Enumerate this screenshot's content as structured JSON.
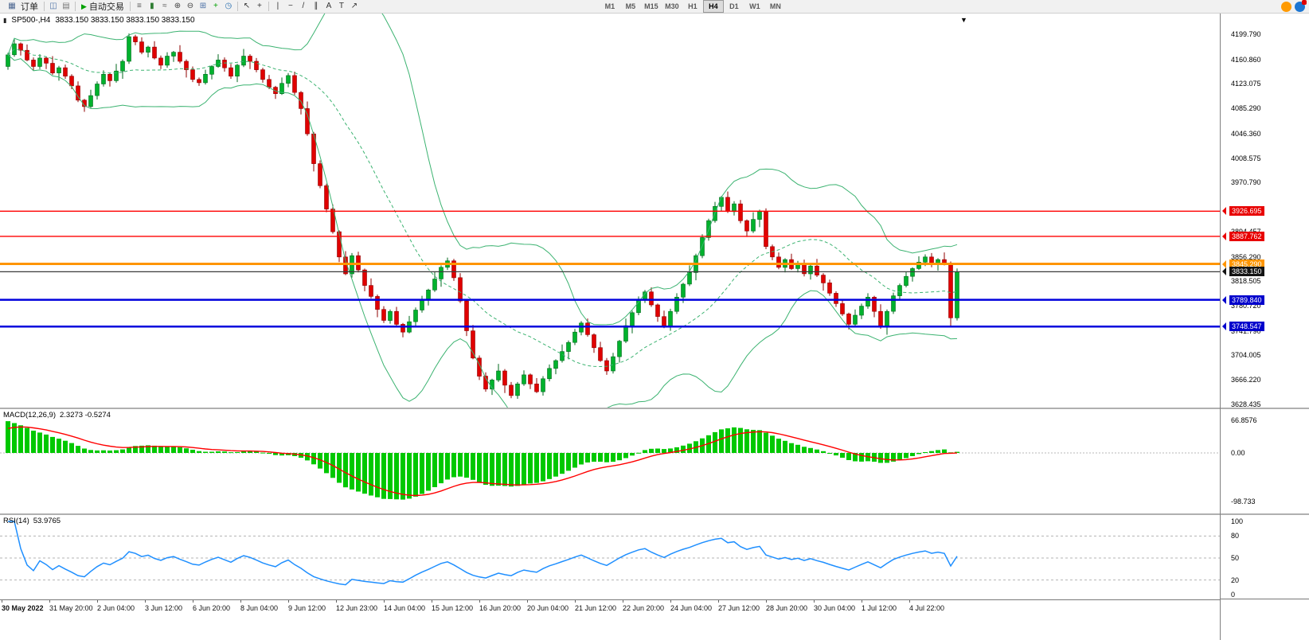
{
  "toolbar": {
    "new_order": {
      "icon_glyph": "▦",
      "label": "订单"
    },
    "chart_icons": [
      {
        "name": "chart-window-icon",
        "glyph": "◫",
        "color": "#4a6fa5"
      },
      {
        "name": "profiles-icon",
        "glyph": "▤",
        "color": "#777777"
      }
    ],
    "auto_trading": {
      "label": "自动交易",
      "play": "▶"
    },
    "tool_icons": [
      {
        "name": "bar-chart-icon",
        "glyph": "≡",
        "color": "#555555"
      },
      {
        "name": "candle-chart-icon",
        "glyph": "▮",
        "color": "#2e7d32"
      },
      {
        "name": "line-chart-icon",
        "glyph": "≈",
        "color": "#555555"
      },
      {
        "name": "zoom-in-icon",
        "glyph": "⊕",
        "color": "#444444"
      },
      {
        "name": "zoom-out-icon",
        "glyph": "⊖",
        "color": "#444444"
      },
      {
        "name": "tile-windows-icon",
        "glyph": "⊞",
        "color": "#4a6fa5"
      },
      {
        "name": "add-indicator-icon",
        "glyph": "+",
        "color": "#00a000"
      },
      {
        "name": "period-icon",
        "glyph": "◷",
        "color": "#2a6fb0"
      }
    ],
    "pointer_icons": [
      {
        "name": "cursor-icon",
        "glyph": "↖",
        "color": "#333333"
      },
      {
        "name": "crosshair-icon",
        "glyph": "+",
        "color": "#333333"
      }
    ],
    "draw_icons": [
      {
        "name": "vertical-line-icon",
        "glyph": "|",
        "color": "#333333"
      },
      {
        "name": "horizontal-line-icon",
        "glyph": "−",
        "color": "#333333"
      },
      {
        "name": "trendline-icon",
        "glyph": "/",
        "color": "#333333"
      },
      {
        "name": "channel-icon",
        "glyph": "∥",
        "color": "#333333"
      },
      {
        "name": "text-icon",
        "glyph": "A",
        "color": "#333333"
      },
      {
        "name": "label-icon",
        "glyph": "T",
        "color": "#333333"
      },
      {
        "name": "arrow-tool-icon",
        "glyph": "↗",
        "color": "#333333"
      }
    ],
    "timeframes": [
      "M1",
      "M5",
      "M15",
      "M30",
      "H1",
      "H4",
      "D1",
      "W1",
      "MN"
    ],
    "active_timeframe": "H4",
    "right_icons": [
      {
        "name": "community-icon",
        "color": "#ff9a00"
      },
      {
        "name": "search-icon",
        "color": "#1d76d2"
      }
    ]
  },
  "chart_data": {
    "type": "candlestick",
    "symbol_line": "SP500-,H4",
    "ohlc_line": "3833.150 3833.150 3833.150 3833.150",
    "price_axis": {
      "top": 4199.79,
      "bottom": 3628.435,
      "grid_labels": [
        "4199.790",
        "4160.860",
        "4123.075",
        "4085.290",
        "4046.360",
        "4008.575",
        "3970.790",
        "3894.457",
        "3856.290",
        "3818.505",
        "3780.720",
        "3741.790",
        "3704.005",
        "3666.220",
        "3628.435"
      ]
    },
    "candles": {
      "first_open": 4150,
      "closes": [
        4168,
        4185,
        4175,
        4160,
        4150,
        4163,
        4155,
        4140,
        4148,
        4135,
        4120,
        4098,
        4088,
        4105,
        4123,
        4138,
        4128,
        4143,
        4158,
        4196,
        4188,
        4172,
        4180,
        4163,
        4152,
        4166,
        4172,
        4158,
        4145,
        4130,
        4125,
        4138,
        4150,
        4160,
        4148,
        4135,
        4152,
        4166,
        4158,
        4145,
        4130,
        4118,
        4108,
        4124,
        4136,
        4110,
        4085,
        4046,
        4000,
        3966,
        3930,
        3895,
        3856,
        3830,
        3858,
        3836,
        3812,
        3795,
        3775,
        3758,
        3772,
        3752,
        3740,
        3756,
        3774,
        3790,
        3805,
        3822,
        3840,
        3850,
        3824,
        3788,
        3742,
        3700,
        3672,
        3652,
        3666,
        3680,
        3658,
        3642,
        3660,
        3674,
        3660,
        3648,
        3668,
        3684,
        3696,
        3710,
        3724,
        3740,
        3754,
        3736,
        3716,
        3696,
        3680,
        3702,
        3726,
        3750,
        3770,
        3790,
        3802,
        3782,
        3764,
        3748,
        3772,
        3794,
        3814,
        3832,
        3858,
        3886,
        3912,
        3934,
        3948,
        3926,
        3938,
        3912,
        3896,
        3914,
        3926,
        3872,
        3856,
        3840,
        3852,
        3838,
        3846,
        3830,
        3842,
        3828,
        3816,
        3800,
        3784,
        3768,
        3752,
        3766,
        3780,
        3794,
        3772,
        3748,
        3772,
        3796,
        3812,
        3826,
        3838,
        3848,
        3856,
        3844,
        3852,
        3846,
        3762,
        3833.15
      ],
      "wick_high_pattern": [
        3,
        7,
        2,
        9,
        4,
        6,
        2,
        11,
        3,
        5
      ],
      "wick_low_pattern": [
        5,
        3,
        8,
        2,
        6,
        4,
        9,
        3,
        12,
        4
      ]
    },
    "bollinger": {
      "period": 20,
      "deviation": 2
    },
    "levels": [
      {
        "price": 3926.695,
        "label": "3926.695",
        "color": "#ff0000",
        "box": "#e80000",
        "width": 1.4
      },
      {
        "price": 3887.762,
        "label": "3887.762",
        "color": "#ff0000",
        "box": "#e80000",
        "width": 1.4
      },
      {
        "price": 3845.29,
        "label": "3845.290",
        "color": "#ff9500",
        "box": "#ff9500",
        "width": 3
      },
      {
        "price": 3833.15,
        "label": "3833.150",
        "color": "#3a3a3a",
        "box": "#141414",
        "width": 1.2
      },
      {
        "price": 3789.84,
        "label": "3789.840",
        "color": "#0000dd",
        "box": "#0000cc",
        "width": 2.5
      },
      {
        "price": 3748.547,
        "label": "3748.547",
        "color": "#0000dd",
        "box": "#0000cc",
        "width": 2.5
      }
    ],
    "indicators": {
      "macd": {
        "title": "MACD(12,26,9)",
        "values": "2.3273 -0.5274",
        "axis": [
          {
            "label": "66.8576",
            "value": 66.8576
          },
          {
            "label": "0.00",
            "value": 0
          },
          {
            "label": "-98.733",
            "value": -98.733
          }
        ]
      },
      "rsi": {
        "title": "RSI(14)",
        "value": "53.9765",
        "axis": [
          {
            "label": "100",
            "value": 100
          },
          {
            "label": "80",
            "value": 80
          },
          {
            "label": "50",
            "value": 50
          },
          {
            "label": "20",
            "value": 20
          },
          {
            "label": "0",
            "value": 0
          }
        ],
        "levels": [
          80,
          50,
          20
        ]
      }
    },
    "time_labels": [
      "30 May 2022",
      "31 May 20:00",
      "2 Jun 04:00",
      "3 Jun 12:00",
      "6 Jun 20:00",
      "8 Jun 04:00",
      "9 Jun 12:00",
      "12 Jun 23:00",
      "14 Jun 04:00",
      "15 Jun 12:00",
      "16 Jun 20:00",
      "20 Jun 04:00",
      "21 Jun 12:00",
      "22 Jun 20:00",
      "24 Jun 04:00",
      "27 Jun 12:00",
      "28 Jun 20:00",
      "30 Jun 04:00",
      "1 Jul 12:00",
      "4 Jul 22:00"
    ]
  },
  "colors": {
    "bull": "#00b22d",
    "bull_stroke": "#006a1c",
    "bear": "#e00000",
    "bear_stroke": "#8f0000",
    "band": "#3cb371",
    "macd_bar": "#00c800",
    "macd_signal": "#ff0000",
    "rsi_line": "#1f8fff"
  }
}
